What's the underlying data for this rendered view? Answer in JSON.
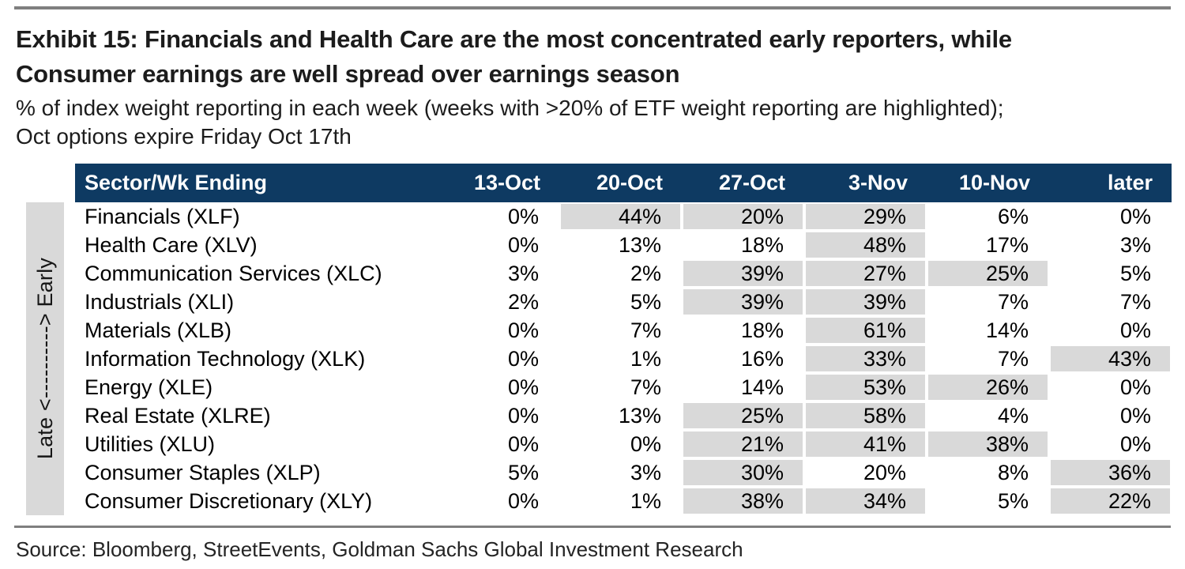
{
  "colors": {
    "header_bg": "#0E3A62",
    "header_text": "#FFFFFF",
    "highlight_bg": "#D9D9D9",
    "strip_bg": "#D9D9D9",
    "rule_color": "#7F7F7F",
    "title_color": "#1C1C1C"
  },
  "exhibit": {
    "title_line1": "Exhibit 15: Financials and Health Care are the most concentrated early reporters, while",
    "title_line2": "Consumer earnings are well spread over earnings season",
    "subtitle_line1": "% of index weight reporting in each week (weeks with >20% of ETF weight reporting are highlighted);",
    "subtitle_line2": "Oct options expire Friday Oct 17th"
  },
  "axis_strip": {
    "label": "Late <----------> Early"
  },
  "source_line": "Source: Bloomberg, StreetEvents, Goldman Sachs Global Investment Research",
  "chart_data": {
    "type": "table",
    "title": "Exhibit 15: Financials and Health Care are the most concentrated early reporters, while Consumer earnings are well spread over earnings season",
    "subtitle": "% of index weight reporting in each week (weeks with >20% of ETF weight reporting are highlighted); Oct options expire Friday Oct 17th",
    "row_header": "Sector/Wk Ending",
    "columns": [
      "13-Oct",
      "20-Oct",
      "27-Oct",
      "3-Nov",
      "10-Nov",
      "later"
    ],
    "unit": "%",
    "highlight_rule": "weeks with >20% of ETF weight reporting are highlighted",
    "rows": [
      {
        "sector": "Financials (XLF)",
        "values": [
          0,
          44,
          20,
          29,
          6,
          0
        ],
        "highlighted": [
          false,
          true,
          true,
          true,
          false,
          false
        ]
      },
      {
        "sector": "Health Care (XLV)",
        "values": [
          0,
          13,
          18,
          48,
          17,
          3
        ],
        "highlighted": [
          false,
          false,
          false,
          true,
          false,
          false
        ]
      },
      {
        "sector": "Communication Services (XLC)",
        "values": [
          3,
          2,
          39,
          27,
          25,
          5
        ],
        "highlighted": [
          false,
          false,
          true,
          true,
          true,
          false
        ]
      },
      {
        "sector": "Industrials (XLI)",
        "values": [
          2,
          5,
          39,
          39,
          7,
          7
        ],
        "highlighted": [
          false,
          false,
          true,
          true,
          false,
          false
        ]
      },
      {
        "sector": "Materials (XLB)",
        "values": [
          0,
          7,
          18,
          61,
          14,
          0
        ],
        "highlighted": [
          false,
          false,
          false,
          true,
          false,
          false
        ]
      },
      {
        "sector": "Information Technology (XLK)",
        "values": [
          0,
          1,
          16,
          33,
          7,
          43
        ],
        "highlighted": [
          false,
          false,
          false,
          true,
          false,
          true
        ]
      },
      {
        "sector": "Energy (XLE)",
        "values": [
          0,
          7,
          14,
          53,
          26,
          0
        ],
        "highlighted": [
          false,
          false,
          false,
          true,
          true,
          false
        ]
      },
      {
        "sector": "Real Estate (XLRE)",
        "values": [
          0,
          13,
          25,
          58,
          4,
          0
        ],
        "highlighted": [
          false,
          false,
          true,
          true,
          false,
          false
        ]
      },
      {
        "sector": "Utilities (XLU)",
        "values": [
          0,
          0,
          21,
          41,
          38,
          0
        ],
        "highlighted": [
          false,
          false,
          true,
          true,
          true,
          false
        ]
      },
      {
        "sector": "Consumer Staples (XLP)",
        "values": [
          5,
          3,
          30,
          20,
          8,
          36
        ],
        "highlighted": [
          false,
          false,
          true,
          false,
          false,
          true
        ]
      },
      {
        "sector": "Consumer Discretionary (XLY)",
        "values": [
          0,
          1,
          38,
          34,
          5,
          22
        ],
        "highlighted": [
          false,
          false,
          true,
          true,
          false,
          true
        ]
      }
    ]
  }
}
